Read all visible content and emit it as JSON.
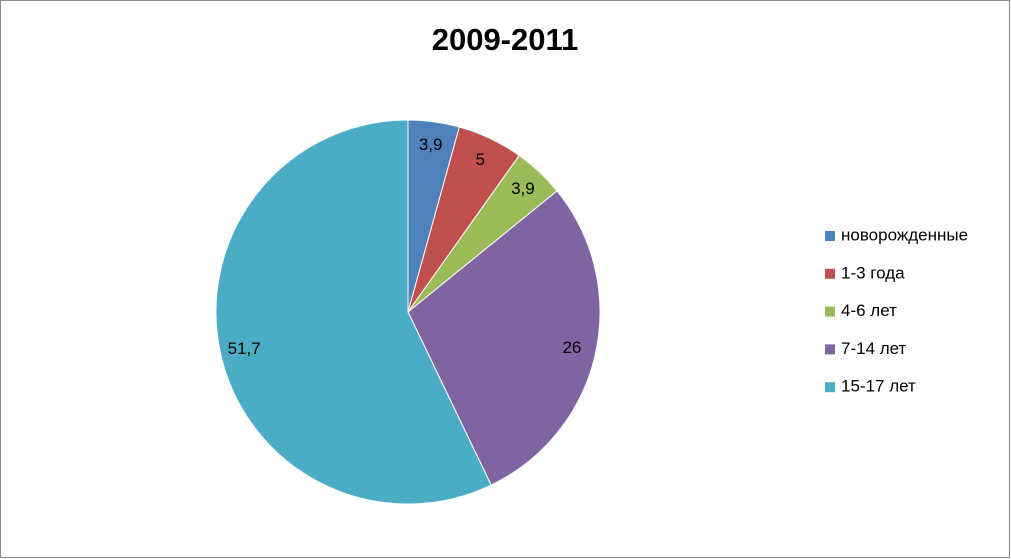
{
  "chart_data": {
    "type": "pie",
    "title": "2009-2011",
    "categories": [
      "новорожденные",
      "1-3 года",
      "4-6 лет",
      "7-14 лет",
      "15-17 лет"
    ],
    "values": [
      3.9,
      5,
      3.9,
      26,
      51.7
    ],
    "value_labels": [
      "3,9",
      "5",
      "3,9",
      "26",
      "51,7"
    ],
    "colors": [
      "#4f81bd",
      "#c0504d",
      "#9bbb59",
      "#8064a2",
      "#4bacc6"
    ],
    "legend": "right"
  }
}
